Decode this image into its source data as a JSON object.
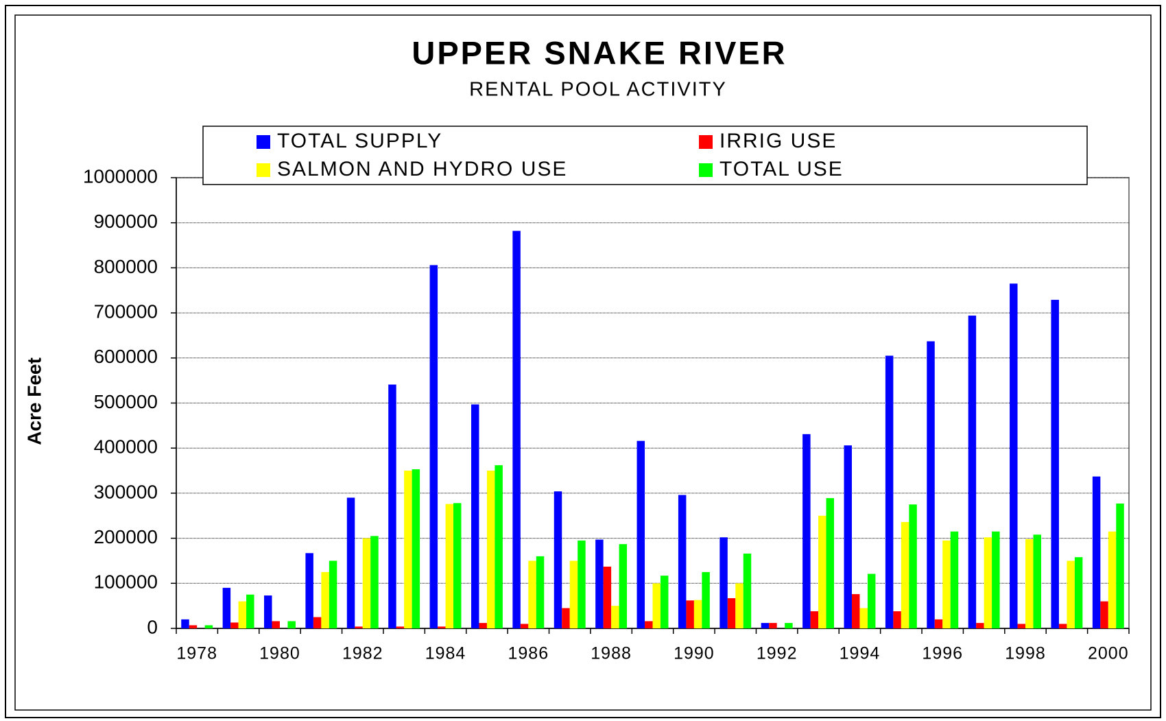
{
  "chart_data": {
    "type": "bar",
    "title": "UPPER SNAKE RIVER",
    "subtitle": "RENTAL POOL ACTIVITY",
    "y_label": "Acre Feet",
    "categories": [
      "1978",
      null,
      "1980",
      null,
      "1982",
      null,
      "1984",
      null,
      "1986",
      null,
      "1988",
      null,
      "1990",
      null,
      "1992",
      null,
      "1994",
      null,
      "1996",
      null,
      "1998",
      null,
      "2000"
    ],
    "series": [
      {
        "name": "TOTAL SUPPLY",
        "color": "#0000ff",
        "values": [
          20000,
          90000,
          73000,
          167000,
          290000,
          541000,
          806000,
          497000,
          882000,
          304000,
          197000,
          416000,
          296000,
          202000,
          12000,
          431000,
          406000,
          605000,
          637000,
          694000,
          765000,
          729000,
          337000
        ]
      },
      {
        "name": "IRRIG USE",
        "color": "#ff0000",
        "values": [
          7000,
          13000,
          16000,
          25000,
          4000,
          4000,
          4000,
          12000,
          10000,
          45000,
          137000,
          16000,
          62000,
          67000,
          12000,
          38000,
          76000,
          38000,
          20000,
          12000,
          10000,
          10000,
          60000
        ]
      },
      {
        "name": "SALMON AND HYDRO USE",
        "color": "#ffff00",
        "values": [
          0,
          60000,
          0,
          125000,
          200000,
          350000,
          276000,
          350000,
          150000,
          150000,
          50000,
          100000,
          63000,
          100000,
          0,
          250000,
          45000,
          236000,
          195000,
          202000,
          198000,
          150000,
          215000
        ]
      },
      {
        "name": "TOTAL USE",
        "color": "#00ff00",
        "values": [
          7000,
          75000,
          16000,
          150000,
          205000,
          353000,
          278000,
          362000,
          160000,
          195000,
          187000,
          117000,
          125000,
          166000,
          12000,
          289000,
          121000,
          275000,
          215000,
          215000,
          208000,
          158000,
          277000
        ]
      }
    ],
    "ylim": [
      0,
      1000000
    ],
    "yticks": [
      0,
      100000,
      200000,
      300000,
      400000,
      500000,
      600000,
      700000,
      800000,
      900000,
      1000000
    ],
    "grid": true,
    "legend": "top"
  }
}
